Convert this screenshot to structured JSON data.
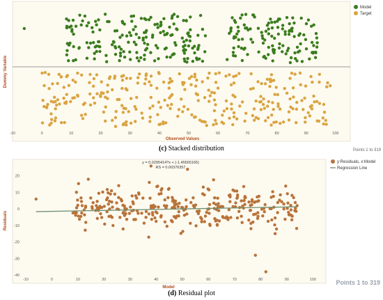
{
  "charts": {
    "stacked": {
      "caption_letter": "(c)",
      "caption_text": " Stacked distribution",
      "points_label": "Points 1 to 319",
      "legend": [
        {
          "label": "Model",
          "color": "#3a7d1e"
        },
        {
          "label": "Target",
          "color": "#d9a441"
        }
      ]
    },
    "residual": {
      "caption_letter": "(d)",
      "caption_text": " Residual plot",
      "points_label": "Points 1 to 319",
      "equation": "y = 0.0295414?x + (-1.45565165)",
      "r_squared": "RS = 0.00376357",
      "legend": [
        {
          "label": "y:Residuals, x:Model",
          "color": "#b8733a"
        },
        {
          "label": "Regression Line",
          "color": "#6f8f6f"
        }
      ]
    }
  },
  "chart_data": [
    {
      "type": "scatter",
      "title": "",
      "xlabel": "Observed Values",
      "ylabel": "Dummy Variable",
      "xlim": [
        -10,
        105
      ],
      "xticks": [
        -10,
        0,
        10,
        20,
        30,
        40,
        50,
        60,
        70,
        80,
        90,
        100
      ],
      "grid": false,
      "legend_position": "top-right",
      "series": [
        {
          "name": "Model",
          "color": "#3a7d1e",
          "n_points": 319,
          "x_range": [
            -6,
            94
          ],
          "outlier_x": -6,
          "gap_x": [
            56,
            63
          ]
        },
        {
          "name": "Target",
          "color": "#d9a441",
          "n_points": 319,
          "x_range": [
            0,
            100
          ]
        }
      ]
    },
    {
      "type": "scatter",
      "title": "",
      "xlabel": "Model",
      "ylabel": "Residuals",
      "xlim": [
        -15,
        105
      ],
      "ylim": [
        -45,
        30
      ],
      "xticks": [
        -10,
        0,
        10,
        20,
        30,
        40,
        50,
        60,
        70,
        80,
        90,
        100
      ],
      "yticks": [
        -40,
        -30,
        -20,
        -10,
        0,
        10,
        20
      ],
      "grid": false,
      "legend_position": "top-right",
      "regression": {
        "slope": 0.0295414,
        "intercept": -1.45565165,
        "r_squared": 0.00376357
      },
      "series": [
        {
          "name": "y:Residuals, x:Model",
          "color": "#b8733a",
          "n_points": 319,
          "highlighted_points": [
            [
              -6,
              6
            ],
            [
              14,
              18
            ],
            [
              38,
              26
            ],
            [
              52,
              24
            ],
            [
              78,
              -28
            ],
            [
              82,
              -38
            ]
          ]
        }
      ]
    }
  ]
}
